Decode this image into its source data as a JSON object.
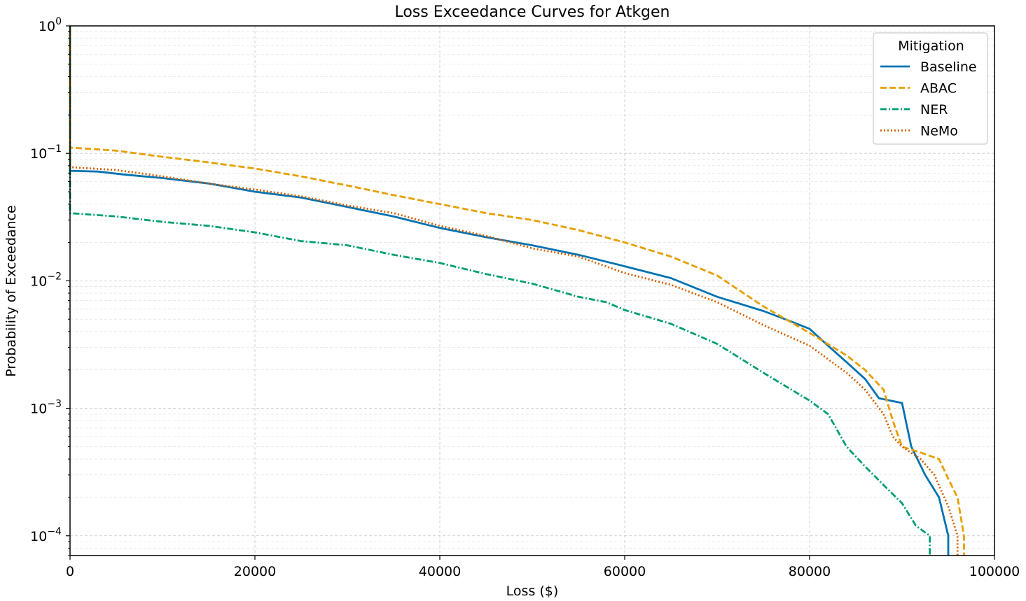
{
  "chart_data": {
    "type": "line",
    "title": "Loss Exceedance Curves for Atkgen",
    "xlabel": "Loss ($)",
    "ylabel": "Probability of Exceedance",
    "xlim": [
      0,
      100000
    ],
    "ylim": [
      7e-05,
      1
    ],
    "yscale": "log",
    "grid": true,
    "x_ticks": [
      0,
      20000,
      40000,
      60000,
      80000,
      100000
    ],
    "x_tick_labels": [
      "0",
      "20000",
      "40000",
      "60000",
      "80000",
      "100000"
    ],
    "y_ticks": [
      {
        "value": 1,
        "base": "10",
        "exp": "0"
      },
      {
        "value": 0.1,
        "base": "10",
        "exp": "−1"
      },
      {
        "value": 0.01,
        "base": "10",
        "exp": "−2"
      },
      {
        "value": 0.001,
        "base": "10",
        "exp": "−3"
      },
      {
        "value": 0.0001,
        "base": "10",
        "exp": "−4"
      }
    ],
    "legend": {
      "title": "Mitigation",
      "position": "top-right"
    },
    "series": [
      {
        "name": "Baseline",
        "color": "#0072B2",
        "dash": "solid",
        "points": [
          [
            0,
            1
          ],
          [
            0,
            0.073
          ],
          [
            3000,
            0.072
          ],
          [
            6000,
            0.068
          ],
          [
            10000,
            0.064
          ],
          [
            15000,
            0.058
          ],
          [
            20000,
            0.05
          ],
          [
            25000,
            0.045
          ],
          [
            30000,
            0.038
          ],
          [
            35000,
            0.032
          ],
          [
            40000,
            0.026
          ],
          [
            45000,
            0.022
          ],
          [
            50000,
            0.019
          ],
          [
            55000,
            0.016
          ],
          [
            60000,
            0.013
          ],
          [
            65000,
            0.0105
          ],
          [
            70000,
            0.0075
          ],
          [
            75000,
            0.0058
          ],
          [
            78000,
            0.0048
          ],
          [
            80000,
            0.0042
          ],
          [
            82000,
            0.0031
          ],
          [
            84000,
            0.0023
          ],
          [
            86000,
            0.0017
          ],
          [
            87500,
            0.0012
          ],
          [
            90000,
            0.0011
          ],
          [
            91000,
            0.0005
          ],
          [
            92500,
            0.0003
          ],
          [
            94000,
            0.0002
          ],
          [
            95000,
            0.0001
          ],
          [
            95000,
            7e-05
          ]
        ]
      },
      {
        "name": "ABAC",
        "color": "#E69F00",
        "dash": "dashed",
        "points": [
          [
            0,
            1
          ],
          [
            0,
            0.111
          ],
          [
            5000,
            0.105
          ],
          [
            10000,
            0.094
          ],
          [
            15000,
            0.085
          ],
          [
            20000,
            0.076
          ],
          [
            25000,
            0.066
          ],
          [
            30000,
            0.056
          ],
          [
            35000,
            0.047
          ],
          [
            40000,
            0.04
          ],
          [
            45000,
            0.034
          ],
          [
            50000,
            0.03
          ],
          [
            55000,
            0.025
          ],
          [
            60000,
            0.02
          ],
          [
            65000,
            0.0155
          ],
          [
            70000,
            0.011
          ],
          [
            75000,
            0.0063
          ],
          [
            80000,
            0.0039
          ],
          [
            84000,
            0.0026
          ],
          [
            86000,
            0.002
          ],
          [
            88000,
            0.0014
          ],
          [
            89000,
            0.0008
          ],
          [
            90000,
            0.0005
          ],
          [
            92000,
            0.00045
          ],
          [
            94000,
            0.0004
          ],
          [
            95000,
            0.00028
          ],
          [
            96000,
            0.0002
          ],
          [
            96700,
            0.0001
          ],
          [
            96700,
            7e-05
          ]
        ]
      },
      {
        "name": "NER",
        "color": "#009E73",
        "dash": "dashdot",
        "points": [
          [
            0,
            1
          ],
          [
            0,
            0.034
          ],
          [
            5000,
            0.032
          ],
          [
            10000,
            0.029
          ],
          [
            15000,
            0.027
          ],
          [
            20000,
            0.024
          ],
          [
            25000,
            0.0205
          ],
          [
            30000,
            0.019
          ],
          [
            35000,
            0.016
          ],
          [
            40000,
            0.0138
          ],
          [
            45000,
            0.0113
          ],
          [
            50000,
            0.0095
          ],
          [
            55000,
            0.0075
          ],
          [
            58000,
            0.0068
          ],
          [
            60000,
            0.0059
          ],
          [
            65000,
            0.0046
          ],
          [
            70000,
            0.0032
          ],
          [
            75000,
            0.0019
          ],
          [
            80000,
            0.00115
          ],
          [
            82000,
            0.0009
          ],
          [
            84000,
            0.0005
          ],
          [
            86000,
            0.00035
          ],
          [
            88000,
            0.00025
          ],
          [
            90000,
            0.00018
          ],
          [
            91500,
            0.00012
          ],
          [
            93000,
            0.0001
          ],
          [
            93000,
            7e-05
          ]
        ]
      },
      {
        "name": "NeMo",
        "color": "#D55E00",
        "dash": "dotted",
        "points": [
          [
            0,
            1
          ],
          [
            0,
            0.078
          ],
          [
            5000,
            0.074
          ],
          [
            10000,
            0.066
          ],
          [
            15000,
            0.058
          ],
          [
            20000,
            0.052
          ],
          [
            25000,
            0.046
          ],
          [
            30000,
            0.039
          ],
          [
            35000,
            0.034
          ],
          [
            40000,
            0.027
          ],
          [
            45000,
            0.0225
          ],
          [
            50000,
            0.018
          ],
          [
            55000,
            0.0155
          ],
          [
            60000,
            0.0115
          ],
          [
            65000,
            0.0093
          ],
          [
            70000,
            0.0068
          ],
          [
            75000,
            0.0045
          ],
          [
            80000,
            0.0031
          ],
          [
            84000,
            0.0019
          ],
          [
            86000,
            0.0014
          ],
          [
            88000,
            0.0009
          ],
          [
            89000,
            0.0006
          ],
          [
            90000,
            0.0005
          ],
          [
            92000,
            0.0004
          ],
          [
            93500,
            0.0003
          ],
          [
            95000,
            0.00017
          ],
          [
            96000,
            0.0001
          ],
          [
            96000,
            7e-05
          ]
        ]
      }
    ]
  }
}
